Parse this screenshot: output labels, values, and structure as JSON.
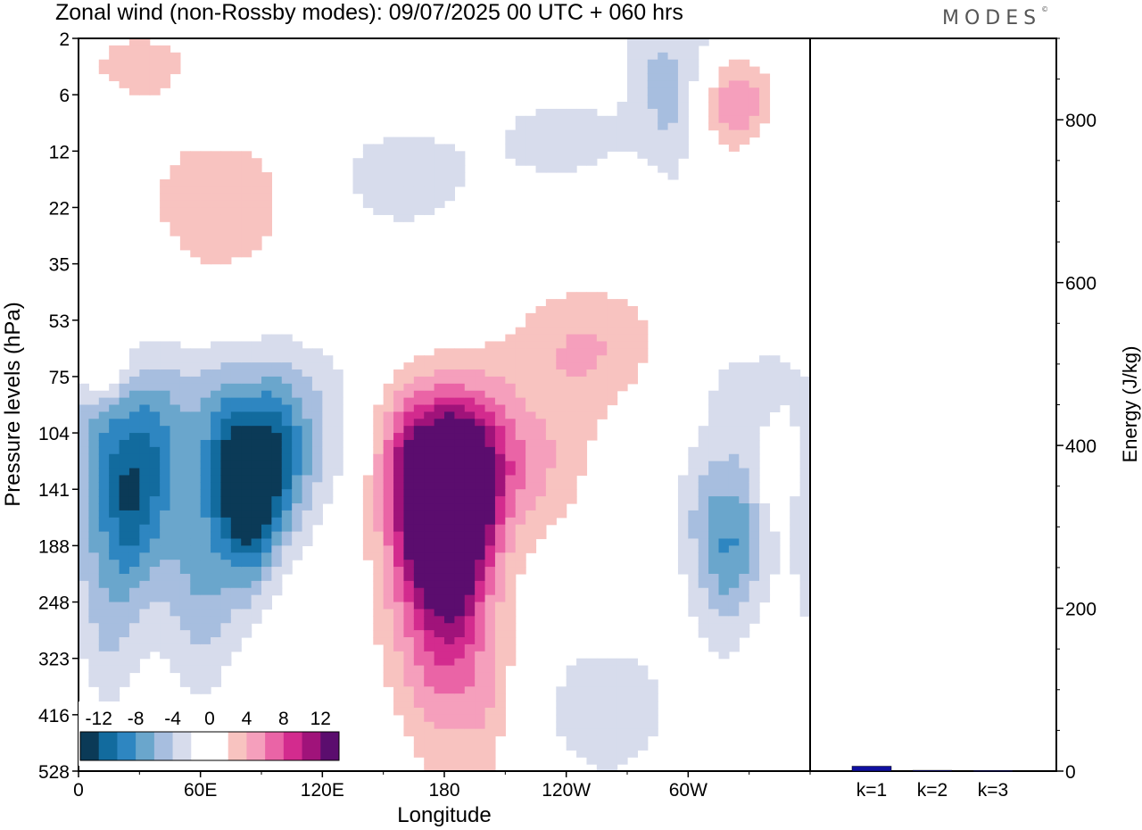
{
  "chart_data": [
    {
      "type": "heatmap",
      "title": "Zonal wind (non-Rossby modes):  09/07/2025  00 UTC  + 060 hrs",
      "xlabel": "Longitude",
      "ylabel": "Pressure levels (hPa)",
      "x_tick_labels": [
        "0",
        "60E",
        "120E",
        "180",
        "120W",
        "60W"
      ],
      "x_range": [
        0,
        360
      ],
      "y_tick_labels": [
        "2",
        "6",
        "12",
        "22",
        "35",
        "53",
        "75",
        "104",
        "141",
        "188",
        "248",
        "323",
        "416",
        "528"
      ],
      "colorbar": {
        "labels": [
          "-12",
          "-8",
          "-4",
          "0",
          "4",
          "8",
          "12"
        ],
        "levels": [
          -14,
          -12,
          -10,
          -8,
          -6,
          -4,
          -2,
          0,
          2,
          4,
          6,
          8,
          10,
          12,
          14
        ],
        "colors": [
          "#0b3a57",
          "#126b9e",
          "#2e86c1",
          "#6aa6cc",
          "#a7bedf",
          "#d7dcec",
          "#ffffff",
          "#ffffff",
          "#f8c3c0",
          "#f59fbc",
          "#ea64a6",
          "#d32b8e",
          "#a0137a",
          "#5b0d6e"
        ]
      },
      "features": [
        {
          "lon": 85,
          "level": "141",
          "value": -14
        },
        {
          "lon": 25,
          "level": "141",
          "value": -8
        },
        {
          "lon": 320,
          "level": "188",
          "value": -8
        },
        {
          "lon": 292,
          "level": "6",
          "value": -6
        },
        {
          "lon": 172,
          "level": "141",
          "value": 12
        },
        {
          "lon": 190,
          "level": "141",
          "value": 10
        },
        {
          "lon": 182,
          "level": "188",
          "value": 8
        }
      ]
    },
    {
      "type": "bar",
      "categories": [
        "k=1",
        "k=2",
        "k=3"
      ],
      "values": [
        6,
        1,
        0.6
      ],
      "ylabel": "Energy (J/kg)",
      "ylim": [
        0,
        900
      ],
      "y_tick_labels": [
        "0",
        "200",
        "400",
        "600",
        "800"
      ],
      "bar_color": "#1010a0"
    }
  ],
  "brand": {
    "name": "MODES",
    "mark": "©"
  }
}
